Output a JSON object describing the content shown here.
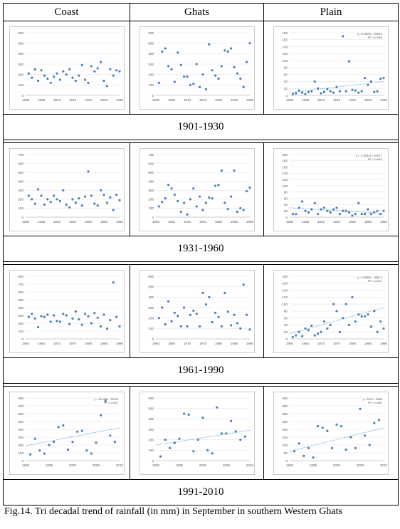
{
  "header": {
    "coast": "Coast",
    "ghats": "Ghats",
    "plain": "Plain"
  },
  "caption": "Fig.14. Tri decadal trend of rainfall (in mm) in September in southern Western Ghats",
  "chart_data": [
    {
      "type": "scatter",
      "period": "1901-1930",
      "region": "Coast",
      "yticks": [
        0,
        100,
        200,
        300,
        400,
        500,
        600
      ],
      "ylim": [
        0,
        600
      ],
      "xticks": [
        "1900",
        "1905",
        "1910",
        "1915",
        "1920",
        "1925",
        "1930"
      ],
      "xlim": [
        1900,
        1930
      ],
      "x": [
        1901,
        1902,
        1903,
        1904,
        1905,
        1906,
        1907,
        1908,
        1909,
        1910,
        1911,
        1912,
        1913,
        1914,
        1915,
        1916,
        1917,
        1918,
        1919,
        1920,
        1921,
        1922,
        1923,
        1924,
        1925,
        1926,
        1927,
        1928,
        1929,
        1930
      ],
      "y": [
        210,
        170,
        250,
        140,
        240,
        190,
        160,
        120,
        180,
        210,
        150,
        230,
        200,
        250,
        170,
        140,
        190,
        290,
        150,
        120,
        280,
        230,
        260,
        320,
        140,
        90,
        250,
        190,
        240,
        230
      ],
      "trendline": null,
      "equation": "",
      "r2": ""
    },
    {
      "type": "scatter",
      "period": "1901-1930",
      "region": "Ghats",
      "yticks": [
        0,
        100,
        200,
        300,
        400,
        500,
        600
      ],
      "ylim": [
        0,
        600
      ],
      "xticks": [
        "1900",
        "1905",
        "1910",
        "1915",
        "1920",
        "1925",
        "1930"
      ],
      "xlim": [
        1900,
        1930
      ],
      "x": [
        1901,
        1902,
        1903,
        1904,
        1905,
        1906,
        1907,
        1908,
        1909,
        1910,
        1911,
        1912,
        1913,
        1914,
        1915,
        1916,
        1917,
        1918,
        1919,
        1920,
        1921,
        1922,
        1923,
        1924,
        1925,
        1926,
        1927,
        1928,
        1929,
        1930
      ],
      "y": [
        120,
        420,
        450,
        280,
        250,
        130,
        410,
        290,
        180,
        180,
        100,
        110,
        300,
        80,
        200,
        60,
        490,
        240,
        190,
        160,
        280,
        430,
        420,
        450,
        270,
        210,
        160,
        80,
        320,
        500
      ],
      "trendline": null,
      "equation": "",
      "r2": ""
    },
    {
      "type": "scatter",
      "period": "1901-1930",
      "region": "Plain",
      "yticks": [
        0,
        20,
        40,
        60,
        80,
        100,
        120,
        140,
        160,
        180
      ],
      "ylim": [
        0,
        180
      ],
      "xticks": [
        "1900",
        "1905",
        "1910",
        "1915",
        "1920",
        "1925",
        "1930"
      ],
      "xlim": [
        1900,
        1930
      ],
      "x": [
        1901,
        1902,
        1903,
        1904,
        1905,
        1906,
        1907,
        1908,
        1909,
        1910,
        1911,
        1912,
        1913,
        1914,
        1915,
        1916,
        1917,
        1918,
        1919,
        1920,
        1921,
        1922,
        1923,
        1924,
        1925,
        1926,
        1927,
        1928,
        1929,
        1930
      ],
      "y": [
        4,
        6,
        14,
        8,
        4,
        10,
        12,
        40,
        20,
        6,
        10,
        18,
        12,
        8,
        24,
        12,
        170,
        12,
        98,
        16,
        14,
        8,
        12,
        50,
        30,
        40,
        10,
        12,
        48,
        50
      ],
      "trendline": [
        1900,
        8,
        1930,
        40
      ],
      "equation": "y = 1.0879x - 2059.1",
      "r2": "R² = 0.0400"
    },
    {
      "type": "scatter",
      "period": "1931-1960",
      "region": "Coast",
      "yticks": [
        0,
        100,
        200,
        300,
        400,
        500,
        600,
        700
      ],
      "ylim": [
        0,
        700
      ],
      "xticks": [
        "1930",
        "1935",
        "1940",
        "1945",
        "1950",
        "1955",
        "1960"
      ],
      "xlim": [
        1930,
        1960
      ],
      "x": [
        1931,
        1932,
        1933,
        1934,
        1935,
        1936,
        1937,
        1938,
        1939,
        1940,
        1941,
        1942,
        1943,
        1944,
        1945,
        1946,
        1947,
        1948,
        1949,
        1950,
        1951,
        1952,
        1953,
        1954,
        1955,
        1956,
        1957,
        1958,
        1959,
        1960
      ],
      "y": [
        240,
        200,
        150,
        310,
        240,
        140,
        200,
        170,
        240,
        200,
        180,
        300,
        140,
        110,
        200,
        160,
        210,
        130,
        230,
        510,
        240,
        150,
        130,
        300,
        250,
        160,
        220,
        80,
        250,
        190
      ],
      "trendline": null,
      "equation": "",
      "r2": ""
    },
    {
      "type": "scatter",
      "period": "1931-1960",
      "region": "Ghats",
      "yticks": [
        0,
        100,
        200,
        300,
        400,
        500,
        600,
        700
      ],
      "ylim": [
        0,
        700
      ],
      "xticks": [
        "1930",
        "1935",
        "1940",
        "1945",
        "1950",
        "1955",
        "1960"
      ],
      "xlim": [
        1930,
        1960
      ],
      "x": [
        1931,
        1932,
        1933,
        1934,
        1935,
        1936,
        1937,
        1938,
        1939,
        1940,
        1941,
        1942,
        1943,
        1944,
        1945,
        1946,
        1947,
        1948,
        1949,
        1950,
        1951,
        1952,
        1953,
        1954,
        1955,
        1956,
        1957,
        1958,
        1959,
        1960
      ],
      "y": [
        120,
        170,
        210,
        360,
        320,
        250,
        180,
        60,
        160,
        30,
        200,
        320,
        120,
        230,
        80,
        160,
        220,
        210,
        350,
        360,
        520,
        160,
        90,
        230,
        520,
        60,
        100,
        80,
        290,
        330
      ],
      "trendline": null,
      "equation": "",
      "r2": ""
    },
    {
      "type": "scatter",
      "period": "1931-1960",
      "region": "Plain",
      "yticks": [
        0,
        20,
        40,
        60,
        80,
        100,
        120,
        140,
        160,
        180,
        200
      ],
      "ylim": [
        0,
        200
      ],
      "xticks": [
        "1930",
        "1935",
        "1940",
        "1945",
        "1950",
        "1955",
        "1960"
      ],
      "xlim": [
        1930,
        1960
      ],
      "x": [
        1931,
        1932,
        1933,
        1934,
        1935,
        1936,
        1937,
        1938,
        1939,
        1940,
        1941,
        1942,
        1943,
        1944,
        1945,
        1946,
        1947,
        1948,
        1949,
        1950,
        1951,
        1952,
        1953,
        1954,
        1955,
        1956,
        1957,
        1958,
        1959,
        1960
      ],
      "y": [
        10,
        10,
        30,
        50,
        20,
        15,
        25,
        45,
        10,
        25,
        30,
        20,
        15,
        25,
        30,
        10,
        20,
        20,
        15,
        5,
        10,
        45,
        10,
        10,
        25,
        10,
        15,
        20,
        10,
        20
      ],
      "trendline": [
        1930,
        30,
        1960,
        12
      ],
      "equation": "y = -0.5031x + 1003.7",
      "r2": "R² = 0.0410"
    },
    {
      "type": "scatter",
      "period": "1961-1990",
      "region": "Coast",
      "yticks": [
        0,
        100,
        200,
        300,
        400,
        500,
        600,
        700,
        800
      ],
      "ylim": [
        0,
        800
      ],
      "xticks": [
        "1960",
        "1965",
        "1970",
        "1975",
        "1980",
        "1985",
        "1990"
      ],
      "xlim": [
        1960,
        1990
      ],
      "x": [
        1961,
        1962,
        1963,
        1964,
        1965,
        1966,
        1967,
        1968,
        1969,
        1970,
        1971,
        1972,
        1973,
        1974,
        1975,
        1976,
        1977,
        1978,
        1979,
        1980,
        1981,
        1982,
        1983,
        1984,
        1985,
        1986,
        1987,
        1988,
        1989,
        1990
      ],
      "y": [
        280,
        320,
        260,
        150,
        290,
        280,
        310,
        220,
        300,
        230,
        220,
        320,
        300,
        190,
        260,
        350,
        250,
        180,
        320,
        290,
        200,
        330,
        270,
        160,
        310,
        130,
        240,
        720,
        280,
        160
      ],
      "trendline": null,
      "equation": "",
      "r2": ""
    },
    {
      "type": "scatter",
      "period": "1961-1990",
      "region": "Ghats",
      "yticks": [
        0,
        100,
        200,
        300,
        400,
        500,
        600
      ],
      "ylim": [
        0,
        600
      ],
      "xticks": [
        "1960",
        "1965",
        "1970",
        "1975",
        "1980",
        "1985",
        "1990"
      ],
      "xlim": [
        1960,
        1990
      ],
      "x": [
        1961,
        1962,
        1963,
        1964,
        1965,
        1966,
        1967,
        1968,
        1969,
        1970,
        1971,
        1972,
        1973,
        1974,
        1975,
        1976,
        1977,
        1978,
        1979,
        1980,
        1981,
        1982,
        1983,
        1984,
        1985,
        1986,
        1987,
        1988,
        1989,
        1990
      ],
      "y": [
        200,
        300,
        140,
        360,
        170,
        250,
        220,
        120,
        300,
        120,
        230,
        270,
        240,
        120,
        440,
        330,
        400,
        160,
        250,
        210,
        120,
        440,
        260,
        130,
        230,
        150,
        100,
        520,
        230,
        90
      ],
      "trendline": null,
      "equation": "",
      "r2": ""
    },
    {
      "type": "scatter",
      "period": "1961-1990",
      "region": "Plain",
      "yticks": [
        0,
        20,
        40,
        60,
        80,
        100,
        120,
        140,
        160,
        180
      ],
      "ylim": [
        0,
        180
      ],
      "xticks": [
        "1960",
        "1965",
        "1970",
        "1975",
        "1980",
        "1985",
        "1990"
      ],
      "xlim": [
        1960,
        1990
      ],
      "x": [
        1961,
        1962,
        1963,
        1964,
        1965,
        1966,
        1967,
        1968,
        1969,
        1970,
        1971,
        1972,
        1973,
        1974,
        1975,
        1976,
        1977,
        1978,
        1979,
        1980,
        1981,
        1982,
        1983,
        1984,
        1985,
        1986,
        1987,
        1988,
        1989,
        1990
      ],
      "y": [
        5,
        10,
        20,
        8,
        30,
        25,
        38,
        10,
        15,
        20,
        50,
        30,
        40,
        100,
        80,
        20,
        60,
        100,
        40,
        120,
        50,
        70,
        65,
        65,
        70,
        35,
        80,
        20,
        50,
        30
      ],
      "trendline": [
        1960,
        15,
        1990,
        90
      ],
      "equation": "y = 1.8605x - 3661.2",
      "r2": "R² = 0.2317"
    },
    {
      "type": "scatter",
      "period": "1991-2010",
      "region": "Coast",
      "yticks": [
        0,
        100,
        200,
        300,
        400,
        500,
        600,
        700,
        800
      ],
      "ylim": [
        0,
        800
      ],
      "xticks": [
        "1990",
        "1995",
        "2000",
        "2005",
        "2010"
      ],
      "xlim": [
        1990,
        2010
      ],
      "x": [
        1991,
        1992,
        1993,
        1994,
        1995,
        1996,
        1997,
        1998,
        1999,
        2000,
        2001,
        2002,
        2003,
        2004,
        2005,
        2006,
        2007,
        2008,
        2009
      ],
      "y": [
        80,
        280,
        130,
        90,
        200,
        240,
        430,
        450,
        140,
        240,
        370,
        380,
        130,
        90,
        230,
        580,
        760,
        320,
        240
      ],
      "trendline": [
        1990,
        190,
        2010,
        420
      ],
      "equation": "y = 16.156x - 32100",
      "r2": "R² = 0.2227"
    },
    {
      "type": "scatter",
      "period": "1991-2010",
      "region": "Ghats",
      "yticks": [
        0,
        100,
        200,
        300,
        400,
        500,
        600
      ],
      "ylim": [
        0,
        600
      ],
      "xticks": [
        "1990",
        "1995",
        "2000",
        "2005",
        "2010"
      ],
      "xlim": [
        1990,
        2010
      ],
      "x": [
        1991,
        1992,
        1993,
        1994,
        1995,
        1996,
        1997,
        1998,
        1999,
        2000,
        2001,
        2002,
        2003,
        2004,
        2005,
        2006,
        2007,
        2008,
        2009
      ],
      "y": [
        40,
        200,
        120,
        170,
        210,
        450,
        440,
        90,
        200,
        410,
        100,
        70,
        510,
        260,
        260,
        380,
        280,
        200,
        230
      ],
      "trendline": [
        1990,
        150,
        2010,
        290
      ],
      "equation": "",
      "r2": ""
    },
    {
      "type": "scatter",
      "period": "1991-2010",
      "region": "Plain",
      "yticks": [
        0,
        50,
        100,
        150,
        200,
        250,
        300,
        350,
        400
      ],
      "ylim": [
        0,
        400
      ],
      "xticks": [
        "1990",
        "1995",
        "2000",
        "2005",
        "2010"
      ],
      "xlim": [
        1990,
        2010
      ],
      "x": [
        1991,
        1992,
        1993,
        1994,
        1995,
        1996,
        1997,
        1998,
        1999,
        2000,
        2001,
        2002,
        2003,
        2004,
        2005,
        2006,
        2007,
        2008,
        2009
      ],
      "y": [
        60,
        110,
        30,
        80,
        20,
        220,
        210,
        190,
        80,
        230,
        220,
        70,
        150,
        80,
        330,
        160,
        100,
        240,
        260
      ],
      "trendline": [
        1990,
        60,
        2010,
        210
      ],
      "equation": "y = 5.27x - 8054",
      "r2": "R² = 0.1897"
    }
  ],
  "periods": [
    "1901-1930",
    "1931-1960",
    "1961-1990",
    "1991-2010"
  ]
}
